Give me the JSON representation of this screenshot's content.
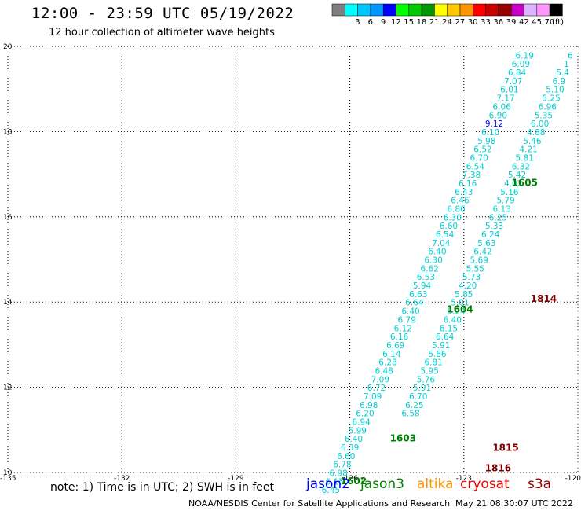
{
  "header": {
    "title": "12:00 - 23:59 UTC 05/19/2022",
    "subtitle": "12 hour collection of altimeter wave heights"
  },
  "color_scale": {
    "unit": "(ft)",
    "bins": [
      {
        "label": "",
        "color": "#7f7f7f"
      },
      {
        "label": "3",
        "color": "#00ffff"
      },
      {
        "label": "6",
        "color": "#00c8ff"
      },
      {
        "label": "9",
        "color": "#0096ff"
      },
      {
        "label": "12",
        "color": "#0000ff"
      },
      {
        "label": "15",
        "color": "#00ff00"
      },
      {
        "label": "18",
        "color": "#00c800"
      },
      {
        "label": "21",
        "color": "#009600"
      },
      {
        "label": "24",
        "color": "#ffff00"
      },
      {
        "label": "27",
        "color": "#ffc800"
      },
      {
        "label": "30",
        "color": "#ff9600"
      },
      {
        "label": "33",
        "color": "#ff0000"
      },
      {
        "label": "36",
        "color": "#c80000"
      },
      {
        "label": "39",
        "color": "#960000"
      },
      {
        "label": "42",
        "color": "#c800c8"
      },
      {
        "label": "45",
        "color": "#dcb4ff"
      },
      {
        "label": "70",
        "color": "#ff96ff"
      },
      {
        "label": "",
        "color": "#000000"
      }
    ]
  },
  "chart_data": {
    "type": "scatter",
    "xlim": [
      -135,
      -120
    ],
    "ylim": [
      10,
      20
    ],
    "x_ticks": [
      "-135",
      "-132",
      "-129",
      "-126",
      "-123",
      "-120"
    ],
    "y_ticks": [
      "10",
      "12",
      "14",
      "16",
      "18",
      "20"
    ],
    "grid": true,
    "point_colors": {
      "cyan": "#00ced1",
      "blue": "#0000ff"
    },
    "tracks": [
      {
        "name": "",
        "points": [
          {
            "x": -121.4,
            "y": 19.79,
            "v": "6.19"
          },
          {
            "x": -121.5,
            "y": 19.59,
            "v": "6.09"
          },
          {
            "x": -121.6,
            "y": 19.39,
            "v": "6.84"
          },
          {
            "x": -121.7,
            "y": 19.19,
            "v": "7.07"
          },
          {
            "x": -121.8,
            "y": 18.99,
            "v": "6.01"
          },
          {
            "x": -121.9,
            "y": 18.79,
            "v": "7.17"
          },
          {
            "x": -122.0,
            "y": 18.59,
            "v": "6.06"
          },
          {
            "x": -122.1,
            "y": 18.39,
            "v": "6.90"
          },
          {
            "x": -122.2,
            "y": 18.19,
            "v": "9.12",
            "color": "blue"
          },
          {
            "x": -122.3,
            "y": 17.99,
            "v": "6.10"
          },
          {
            "x": -122.4,
            "y": 17.79,
            "v": "5.98"
          },
          {
            "x": -122.5,
            "y": 17.59,
            "v": "6.52"
          },
          {
            "x": -122.6,
            "y": 17.39,
            "v": "6.70"
          },
          {
            "x": -122.7,
            "y": 17.19,
            "v": "6.54"
          },
          {
            "x": -122.8,
            "y": 16.99,
            "v": "7.38"
          },
          {
            "x": -122.9,
            "y": 16.79,
            "v": "6.16"
          },
          {
            "x": -123.0,
            "y": 16.59,
            "v": "6.43"
          },
          {
            "x": -123.1,
            "y": 16.39,
            "v": "6.46"
          },
          {
            "x": -123.2,
            "y": 16.19,
            "v": "6.86"
          },
          {
            "x": -123.3,
            "y": 15.99,
            "v": "6.30"
          },
          {
            "x": -123.4,
            "y": 15.79,
            "v": "6.60"
          },
          {
            "x": -123.5,
            "y": 15.59,
            "v": "6.54"
          },
          {
            "x": -123.6,
            "y": 15.39,
            "v": "7.04"
          },
          {
            "x": -123.7,
            "y": 15.19,
            "v": "6.40"
          },
          {
            "x": -123.8,
            "y": 14.99,
            "v": "6.30"
          },
          {
            "x": -123.9,
            "y": 14.79,
            "v": "6.62"
          },
          {
            "x": -124.0,
            "y": 14.59,
            "v": "6.53"
          },
          {
            "x": -124.1,
            "y": 14.39,
            "v": "5.94"
          },
          {
            "x": -124.2,
            "y": 14.19,
            "v": "6.63"
          },
          {
            "x": -124.3,
            "y": 13.99,
            "v": "6.64"
          },
          {
            "x": -124.4,
            "y": 13.79,
            "v": "6.40"
          },
          {
            "x": -124.5,
            "y": 13.59,
            "v": "6.79"
          },
          {
            "x": -124.6,
            "y": 13.39,
            "v": "6.12"
          },
          {
            "x": -124.7,
            "y": 13.19,
            "v": "6.16"
          },
          {
            "x": -124.8,
            "y": 12.99,
            "v": "6.69"
          },
          {
            "x": -124.9,
            "y": 12.79,
            "v": "6.14"
          },
          {
            "x": -125.0,
            "y": 12.59,
            "v": "6.28"
          },
          {
            "x": -125.1,
            "y": 12.39,
            "v": "6.48"
          },
          {
            "x": -125.2,
            "y": 12.19,
            "v": "7.09"
          },
          {
            "x": -125.3,
            "y": 11.99,
            "v": "6.72"
          },
          {
            "x": -125.4,
            "y": 11.79,
            "v": "7.09"
          },
          {
            "x": -125.5,
            "y": 11.59,
            "v": "6.98"
          },
          {
            "x": -125.6,
            "y": 11.39,
            "v": "6.20"
          },
          {
            "x": -125.7,
            "y": 11.19,
            "v": "6.94"
          },
          {
            "x": -125.8,
            "y": 10.99,
            "v": "5.99"
          },
          {
            "x": -125.9,
            "y": 10.79,
            "v": "6.40"
          },
          {
            "x": -126.0,
            "y": 10.59,
            "v": "6.39"
          },
          {
            "x": -126.1,
            "y": 10.39,
            "v": "6.60"
          },
          {
            "x": -126.2,
            "y": 10.19,
            "v": "6.78"
          },
          {
            "x": -126.3,
            "y": 9.99,
            "v": "6.98"
          },
          {
            "x": -126.4,
            "y": 9.79,
            "v": "6.15"
          },
          {
            "x": -126.5,
            "y": 9.59,
            "v": "6.45"
          }
        ]
      },
      {
        "name": "",
        "points": [
          {
            "x": -120.2,
            "y": 19.79,
            "v": "6"
          },
          {
            "x": -120.3,
            "y": 19.59,
            "v": "1"
          },
          {
            "x": -120.4,
            "y": 19.39,
            "v": "5.4"
          },
          {
            "x": -120.5,
            "y": 19.19,
            "v": "6.9"
          },
          {
            "x": -120.6,
            "y": 18.99,
            "v": "5.10"
          },
          {
            "x": -120.7,
            "y": 18.79,
            "v": "5.25"
          },
          {
            "x": -120.8,
            "y": 18.59,
            "v": "6.96"
          },
          {
            "x": -120.9,
            "y": 18.39,
            "v": "5.35"
          },
          {
            "x": -121.0,
            "y": 18.19,
            "v": "6.00"
          },
          {
            "x": -121.1,
            "y": 17.99,
            "v": "4.88"
          },
          {
            "x": -121.2,
            "y": 17.79,
            "v": "5.46"
          },
          {
            "x": -121.3,
            "y": 17.59,
            "v": "4.21"
          },
          {
            "x": -121.4,
            "y": 17.39,
            "v": "5.81"
          },
          {
            "x": -121.5,
            "y": 17.19,
            "v": "6.32"
          },
          {
            "x": -121.6,
            "y": 16.99,
            "v": "5.42"
          },
          {
            "x": -121.7,
            "y": 16.79,
            "v": "4.02"
          },
          {
            "x": -121.8,
            "y": 16.59,
            "v": "5.16"
          },
          {
            "x": -121.9,
            "y": 16.39,
            "v": "5.79"
          },
          {
            "x": -122.0,
            "y": 16.19,
            "v": "6.13"
          },
          {
            "x": -122.1,
            "y": 15.99,
            "v": "6.25"
          },
          {
            "x": -122.2,
            "y": 15.79,
            "v": "5.33"
          },
          {
            "x": -122.3,
            "y": 15.59,
            "v": "6.24"
          },
          {
            "x": -122.4,
            "y": 15.39,
            "v": "5.63"
          },
          {
            "x": -122.5,
            "y": 15.19,
            "v": "6.42"
          },
          {
            "x": -122.6,
            "y": 14.99,
            "v": "5.69"
          },
          {
            "x": -122.7,
            "y": 14.79,
            "v": "5.55"
          },
          {
            "x": -122.8,
            "y": 14.59,
            "v": "5.73"
          },
          {
            "x": -122.9,
            "y": 14.39,
            "v": "4.20"
          },
          {
            "x": -123.0,
            "y": 14.19,
            "v": "5.85"
          },
          {
            "x": -123.1,
            "y": 13.99,
            "v": "5.01"
          },
          {
            "x": -123.2,
            "y": 13.79,
            "v": "5.24"
          },
          {
            "x": -123.3,
            "y": 13.59,
            "v": "6.40"
          },
          {
            "x": -123.4,
            "y": 13.39,
            "v": "6.15"
          },
          {
            "x": -123.5,
            "y": 13.19,
            "v": "6.64"
          },
          {
            "x": -123.6,
            "y": 12.99,
            "v": "5.91"
          },
          {
            "x": -123.7,
            "y": 12.79,
            "v": "5.66"
          },
          {
            "x": -123.8,
            "y": 12.59,
            "v": "6.81"
          },
          {
            "x": -123.9,
            "y": 12.39,
            "v": "5.95"
          },
          {
            "x": -124.0,
            "y": 12.19,
            "v": "5.76"
          },
          {
            "x": -124.1,
            "y": 11.99,
            "v": "5.91"
          },
          {
            "x": -124.2,
            "y": 11.79,
            "v": "6.70"
          },
          {
            "x": -124.3,
            "y": 11.59,
            "v": "6.25"
          },
          {
            "x": -124.4,
            "y": 11.39,
            "v": "6.58"
          }
        ]
      }
    ],
    "time_stamps": [
      {
        "label": "1605",
        "x": -121.4,
        "y": 16.82,
        "color": "#007f00"
      },
      {
        "label": "1604",
        "x": -123.1,
        "y": 13.85,
        "color": "#007f00"
      },
      {
        "label": "1603",
        "x": -124.6,
        "y": 10.82,
        "color": "#007f00"
      },
      {
        "label": "1602",
        "x": -125.9,
        "y": 9.82,
        "color": "#007f00"
      },
      {
        "label": "1814",
        "x": -120.9,
        "y": 14.1,
        "color": "#7f0000"
      },
      {
        "label": "1815",
        "x": -121.9,
        "y": 10.6,
        "color": "#7f0000"
      },
      {
        "label": "1816",
        "x": -122.1,
        "y": 10.12,
        "color": "#7f0000"
      }
    ]
  },
  "footer": {
    "note": "note: 1) Time is in UTC; 2) SWH is in feet",
    "satellites": [
      {
        "name": "jason2",
        "color": "#0000ff"
      },
      {
        "name": "jason3",
        "color": "#008000"
      },
      {
        "name": "altika",
        "color": "#ff9600"
      },
      {
        "name": "cryosat",
        "color": "#ff0000"
      },
      {
        "name": "s3a",
        "color": "#960000"
      }
    ],
    "credit": "NOAA/NESDIS Center for Satellite Applications and Research",
    "generated": "May 21 08:30:07 UTC 2022"
  }
}
